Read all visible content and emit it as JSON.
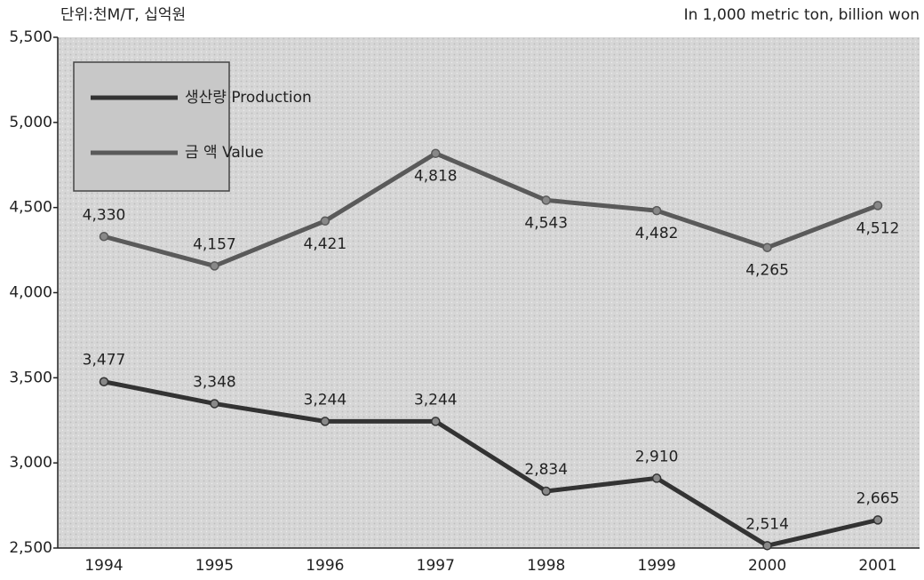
{
  "chart_data": {
    "type": "line",
    "unit_label": "단위:천M/T, 십억원",
    "unit_label_en": "In 1,000 metric ton, billion won",
    "categories": [
      "1994",
      "1995",
      "1996",
      "1997",
      "1998",
      "1999",
      "2000",
      "2001"
    ],
    "series": [
      {
        "name": "생산량 Production",
        "color": "#333333",
        "values": [
          3477,
          3348,
          3244,
          3244,
          2834,
          2910,
          2514,
          2665
        ],
        "value_labels": [
          "3,477",
          "3,348",
          "3,244",
          "3,244",
          "2,834",
          "2,910",
          "2,514",
          "2,665"
        ]
      },
      {
        "name": "금  액 Value",
        "color": "#5a5a5a",
        "values": [
          4330,
          4157,
          4421,
          4818,
          4543,
          4482,
          4265,
          4512
        ],
        "value_labels": [
          "4,330",
          "4,157",
          "4,421",
          "4,818",
          "4,543",
          "4,482",
          "4,265",
          "4,512"
        ]
      }
    ],
    "ylim": [
      2500,
      5500
    ],
    "yticks": [
      {
        "value": 2500,
        "label": "2,500"
      },
      {
        "value": 3000,
        "label": "3,000"
      },
      {
        "value": 3500,
        "label": "3,500"
      },
      {
        "value": 4000,
        "label": "4,000"
      },
      {
        "value": 4500,
        "label": "4,500"
      },
      {
        "value": 5000,
        "label": "5,000"
      },
      {
        "value": 5500,
        "label": "5,500"
      }
    ],
    "legend": "top-left"
  }
}
